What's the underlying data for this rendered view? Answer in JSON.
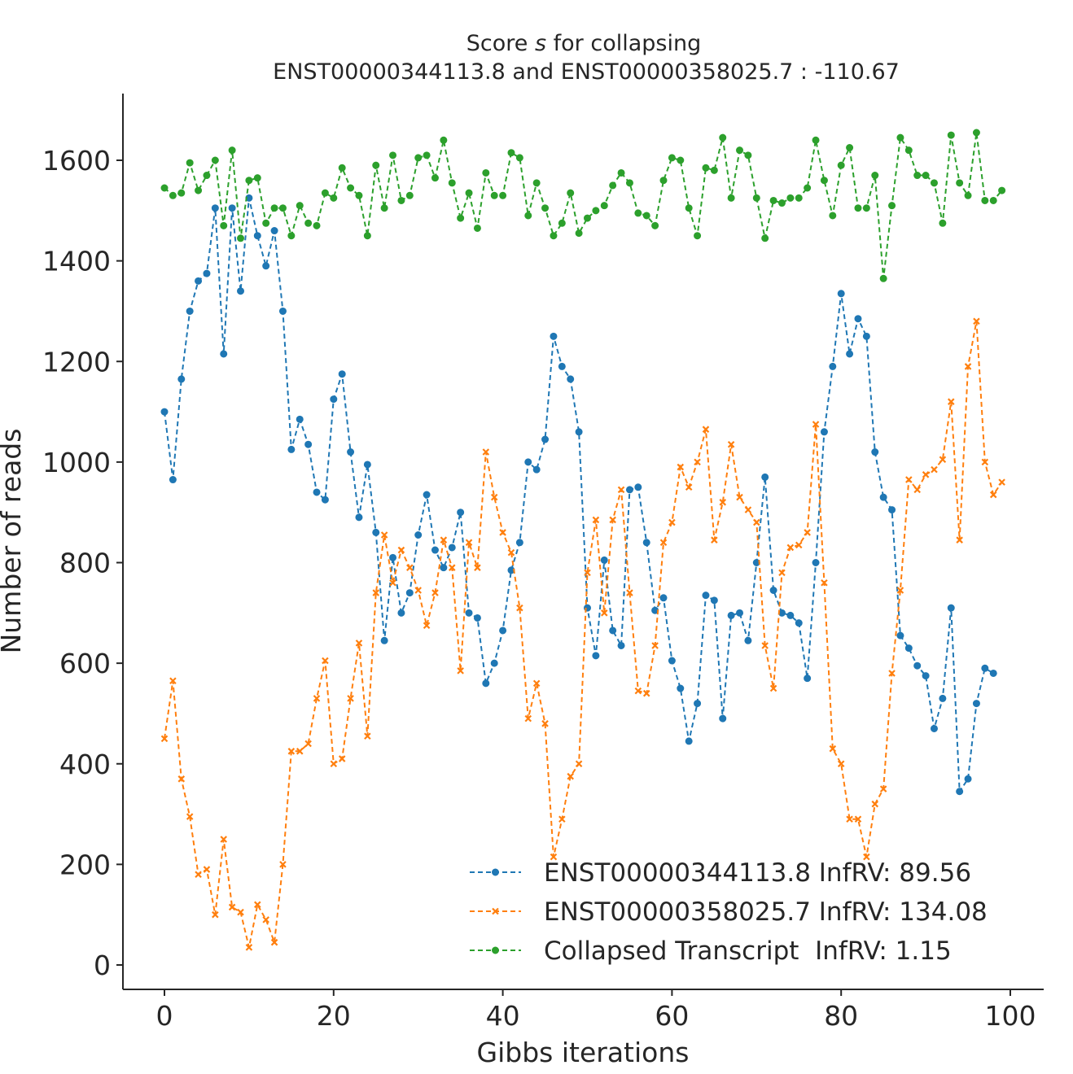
{
  "chart_data": {
    "type": "line",
    "title_line1_prefix": "Score ",
    "title_line1_var": "s",
    "title_line1_suffix": " for collapsing",
    "title_line2": "ENST00000344113.8 and ENST00000358025.7 : -110.67",
    "xlabel": "Gibbs iterations",
    "ylabel": "Number of reads",
    "xlim": [
      -5,
      103
    ],
    "ylim": [
      -50,
      1730
    ],
    "xticks": [
      0,
      20,
      40,
      60,
      80,
      100
    ],
    "yticks": [
      0,
      200,
      400,
      600,
      800,
      1000,
      1200,
      1400,
      1600
    ],
    "grid": false,
    "legend_position": "lower-right",
    "series": [
      {
        "name": "ENST00000344113.8 InfRV: 89.56",
        "color": "#1f77b4",
        "marker": "circle",
        "values": [
          1100,
          965,
          1165,
          1300,
          1360,
          1375,
          1505,
          1215,
          1505,
          1340,
          1525,
          1450,
          1390,
          1460,
          1300,
          1025,
          1085,
          1035,
          940,
          925,
          1125,
          1175,
          1020,
          890,
          995,
          860,
          645,
          810,
          700,
          740,
          855,
          935,
          825,
          790,
          830,
          900,
          700,
          690,
          560,
          600,
          665,
          785,
          840,
          1000,
          985,
          1045,
          1250,
          1190,
          1165,
          1060,
          710,
          615,
          805,
          665,
          635,
          945,
          950,
          840,
          705,
          730,
          605,
          550,
          445,
          520,
          735,
          725,
          490,
          695,
          700,
          645,
          800,
          970,
          745,
          700,
          695,
          680,
          570,
          800,
          1060,
          1190,
          1335,
          1215,
          1285,
          1250,
          1020,
          930,
          905,
          655,
          630,
          595,
          575,
          470,
          530,
          710,
          345,
          370,
          520,
          590,
          580
        ]
      },
      {
        "name": "ENST00000358025.7 InfRV: 134.08",
        "color": "#ff7f0e",
        "marker": "x",
        "values": [
          450,
          565,
          370,
          295,
          180,
          190,
          100,
          250,
          115,
          105,
          35,
          120,
          90,
          45,
          200,
          425,
          425,
          440,
          530,
          605,
          400,
          410,
          530,
          640,
          455,
          740,
          855,
          760,
          825,
          790,
          745,
          675,
          740,
          845,
          790,
          585,
          840,
          790,
          1020,
          930,
          860,
          820,
          710,
          490,
          560,
          480,
          215,
          290,
          375,
          400,
          780,
          885,
          700,
          885,
          945,
          740,
          545,
          540,
          635,
          840,
          880,
          990,
          950,
          1000,
          1065,
          845,
          920,
          1035,
          930,
          905,
          880,
          635,
          550,
          780,
          830,
          835,
          860,
          1075,
          760,
          430,
          400,
          290,
          290,
          215,
          320,
          350,
          580,
          745,
          965,
          945,
          975,
          985,
          1005,
          1120,
          845,
          1190,
          1280,
          1000,
          935,
          960
        ]
      },
      {
        "name": "Collapsed Transcript  InfRV: 1.15",
        "color": "#2ca02c",
        "marker": "circle",
        "values": [
          1545,
          1530,
          1535,
          1595,
          1540,
          1570,
          1600,
          1470,
          1620,
          1445,
          1560,
          1565,
          1475,
          1505,
          1505,
          1450,
          1510,
          1475,
          1470,
          1535,
          1525,
          1585,
          1545,
          1530,
          1450,
          1590,
          1505,
          1610,
          1520,
          1530,
          1605,
          1610,
          1565,
          1640,
          1555,
          1485,
          1535,
          1465,
          1575,
          1530,
          1530,
          1615,
          1605,
          1490,
          1555,
          1505,
          1450,
          1475,
          1535,
          1455,
          1485,
          1500,
          1510,
          1550,
          1575,
          1555,
          1495,
          1490,
          1470,
          1560,
          1605,
          1600,
          1505,
          1450,
          1585,
          1580,
          1645,
          1525,
          1620,
          1610,
          1525,
          1445,
          1520,
          1515,
          1525,
          1525,
          1545,
          1640,
          1560,
          1490,
          1590,
          1625,
          1505,
          1505,
          1570,
          1365,
          1510,
          1645,
          1620,
          1570,
          1570,
          1555,
          1475,
          1650,
          1555,
          1530,
          1655,
          1520,
          1520,
          1540
        ]
      }
    ]
  }
}
